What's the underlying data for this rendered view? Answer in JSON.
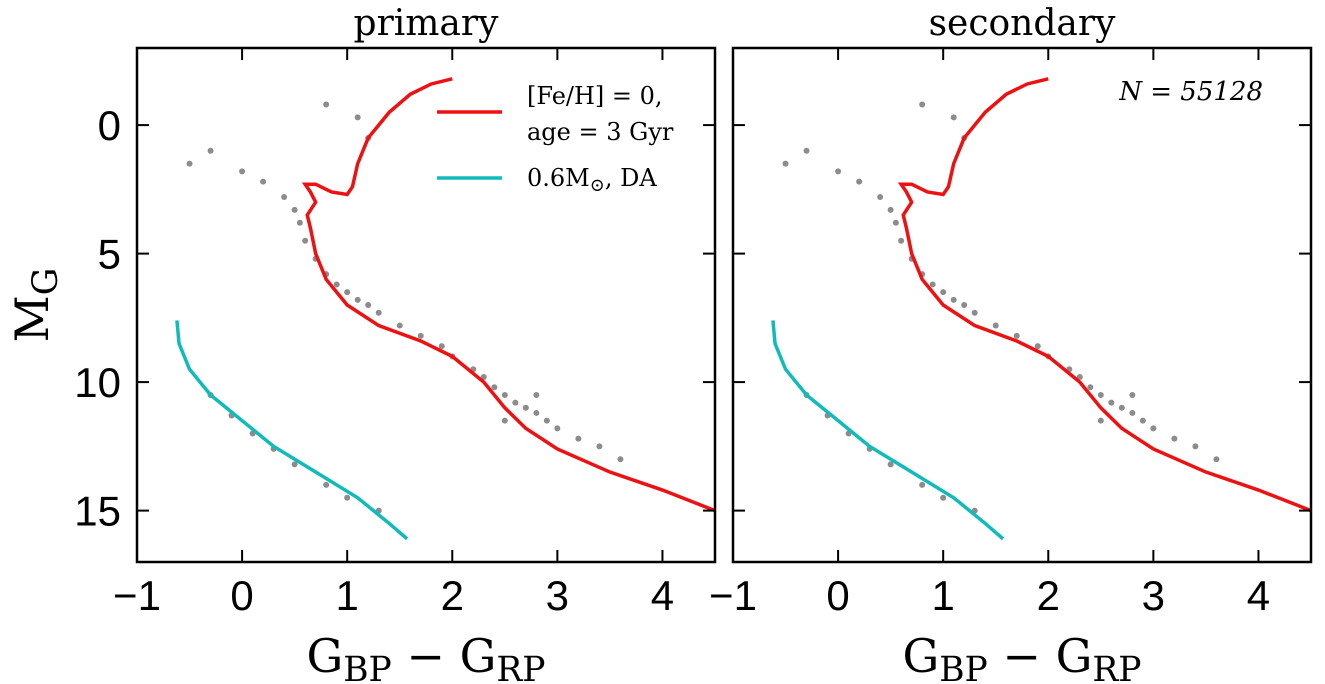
{
  "chart_data": [
    {
      "type": "scatter",
      "title": "primary",
      "x_label": "G_{BP} − G_{RP}",
      "y_label": "M_{G}",
      "xlim": [
        -1,
        4.5
      ],
      "ylim": [
        17,
        -3
      ],
      "xticks": [
        {
          "value": -1,
          "label": "−1"
        },
        0,
        1,
        2,
        3,
        4
      ],
      "yticks": [
        0,
        5,
        10,
        15
      ],
      "show_ytick_labels": true,
      "points": {
        "color": "#000000",
        "x": [
          -0.5,
          -0.3,
          0.0,
          0.2,
          0.4,
          0.5,
          0.55,
          0.6,
          0.7,
          0.8,
          0.9,
          1.0,
          1.1,
          1.2,
          1.3,
          1.5,
          1.7,
          1.9,
          2.0,
          2.2,
          2.3,
          2.4,
          2.5,
          2.6,
          2.7,
          2.8,
          2.9,
          3.0,
          3.2,
          3.4,
          2.8,
          2.5,
          3.6,
          1.2,
          1.1,
          0.8,
          -0.3,
          -0.1,
          0.1,
          0.3,
          0.5,
          0.8,
          1.0,
          1.3
        ],
        "y": [
          1.5,
          1.0,
          1.8,
          2.2,
          2.8,
          3.3,
          3.8,
          4.5,
          5.2,
          5.8,
          6.2,
          6.5,
          6.8,
          7.0,
          7.3,
          7.8,
          8.2,
          8.6,
          9.0,
          9.5,
          9.8,
          10.2,
          10.5,
          10.8,
          11.0,
          11.2,
          11.5,
          11.8,
          12.2,
          12.5,
          10.5,
          11.5,
          13.0,
          0.5,
          -0.3,
          -0.8,
          10.5,
          11.3,
          12.0,
          12.6,
          13.2,
          14.0,
          14.5,
          15.0
        ]
      },
      "series": [
        {
          "name": "[Fe/H] = 0, age = 3 Gyr",
          "color": "#ee1111",
          "x": [
            4.5,
            4.0,
            3.5,
            3.0,
            2.7,
            2.5,
            2.3,
            2.0,
            1.7,
            1.3,
            1.0,
            0.8,
            0.7,
            0.65,
            0.62,
            0.7,
            0.65,
            0.6,
            0.7,
            0.85,
            1.0,
            1.05,
            1.1,
            1.2,
            1.4,
            1.6,
            1.8,
            2.0
          ],
          "values": [
            15.0,
            14.2,
            13.5,
            12.6,
            11.8,
            11.0,
            10.0,
            9.0,
            8.4,
            7.8,
            7.0,
            6.0,
            5.0,
            4.0,
            3.5,
            3.0,
            2.6,
            2.3,
            2.3,
            2.6,
            2.7,
            2.4,
            1.5,
            0.5,
            -0.5,
            -1.2,
            -1.6,
            -1.8
          ]
        },
        {
          "name": "0.6M_{⊙}, DA",
          "color": "#11bbbb",
          "x": [
            -0.62,
            -0.6,
            -0.5,
            -0.3,
            0.0,
            0.3,
            0.7,
            1.1,
            1.4,
            1.57
          ],
          "values": [
            7.6,
            8.5,
            9.5,
            10.5,
            11.5,
            12.5,
            13.5,
            14.5,
            15.5,
            16.1
          ]
        }
      ]
    },
    {
      "type": "scatter",
      "title": "secondary",
      "x_label": "G_{BP} − G_{RP}",
      "annotation": "N = 55128",
      "xlim": [
        -1,
        4.5
      ],
      "ylim": [
        17,
        -3
      ],
      "xticks": [
        {
          "value": -1,
          "label": "−1"
        },
        0,
        1,
        2,
        3,
        4
      ],
      "yticks": [
        0,
        5,
        10,
        15
      ],
      "show_ytick_labels": false,
      "points": {
        "color": "#000000",
        "x": [
          -0.5,
          -0.3,
          0.0,
          0.2,
          0.4,
          0.5,
          0.55,
          0.6,
          0.7,
          0.8,
          0.9,
          1.0,
          1.1,
          1.2,
          1.3,
          1.5,
          1.7,
          1.9,
          2.0,
          2.2,
          2.3,
          2.4,
          2.5,
          2.6,
          2.7,
          2.8,
          2.9,
          3.0,
          3.2,
          3.4,
          2.8,
          2.5,
          3.6,
          1.2,
          1.1,
          0.8,
          -0.3,
          -0.1,
          0.1,
          0.3,
          0.5,
          0.8,
          1.0,
          1.3
        ],
        "y": [
          1.5,
          1.0,
          1.8,
          2.2,
          2.8,
          3.3,
          3.8,
          4.5,
          5.2,
          5.8,
          6.2,
          6.5,
          6.8,
          7.0,
          7.3,
          7.8,
          8.2,
          8.6,
          9.0,
          9.5,
          9.8,
          10.2,
          10.5,
          10.8,
          11.0,
          11.2,
          11.5,
          11.8,
          12.2,
          12.5,
          10.5,
          11.5,
          13.0,
          0.5,
          -0.3,
          -0.8,
          10.5,
          11.3,
          12.0,
          12.6,
          13.2,
          14.0,
          14.5,
          15.0
        ]
      },
      "series": [
        {
          "color": "#ee1111",
          "x": [
            4.5,
            4.0,
            3.5,
            3.0,
            2.7,
            2.5,
            2.3,
            2.0,
            1.7,
            1.3,
            1.0,
            0.8,
            0.7,
            0.65,
            0.62,
            0.7,
            0.65,
            0.6,
            0.7,
            0.85,
            1.0,
            1.05,
            1.1,
            1.2,
            1.4,
            1.6,
            1.8,
            2.0
          ],
          "values": [
            15.0,
            14.2,
            13.5,
            12.6,
            11.8,
            11.0,
            10.0,
            9.0,
            8.4,
            7.8,
            7.0,
            6.0,
            5.0,
            4.0,
            3.5,
            3.0,
            2.6,
            2.3,
            2.3,
            2.6,
            2.7,
            2.4,
            1.5,
            0.5,
            -0.5,
            -1.2,
            -1.6,
            -1.8
          ]
        },
        {
          "color": "#11bbbb",
          "x": [
            -0.62,
            -0.6,
            -0.5,
            -0.3,
            0.0,
            0.3,
            0.7,
            1.1,
            1.4,
            1.57
          ],
          "values": [
            7.6,
            8.5,
            9.5,
            10.5,
            11.5,
            12.5,
            13.5,
            14.5,
            15.5,
            16.1
          ]
        }
      ]
    }
  ]
}
